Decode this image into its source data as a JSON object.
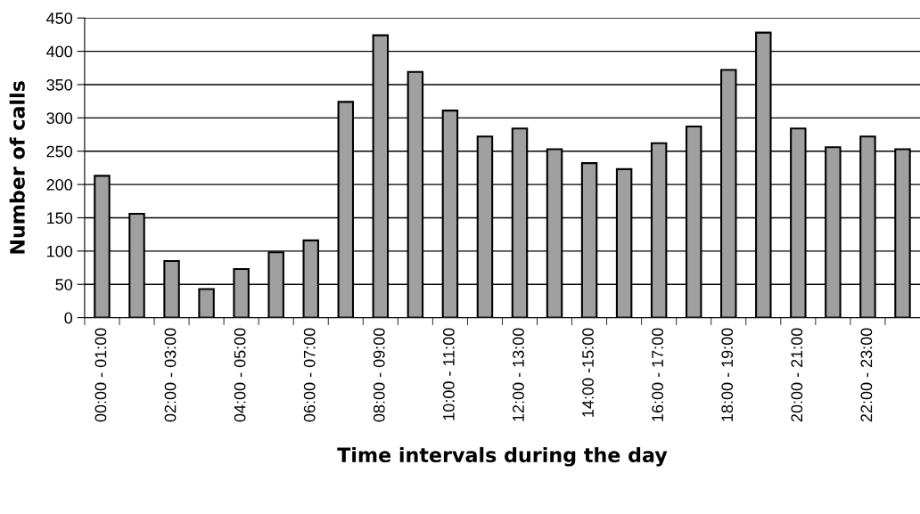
{
  "chart_data": {
    "type": "bar",
    "xlabel": "Time intervals during the day",
    "ylabel": "Number of calls",
    "categories": [
      "00:00 - 01:00",
      null,
      "02:00 - 03:00",
      null,
      "04:00 - 05:00",
      null,
      "06:00 - 07:00",
      null,
      "08:00 - 09:00",
      null,
      "10:00 - 11:00",
      null,
      "12:00 - 13:00",
      null,
      "14:00 -15:00",
      null,
      "16:00 - 17:00",
      null,
      "18:00 - 19:00",
      null,
      "20:00 - 21:00",
      null,
      "22:00 - 23:00",
      null
    ],
    "values": [
      213,
      156,
      85,
      43,
      73,
      98,
      116,
      324,
      424,
      369,
      311,
      272,
      284,
      253,
      232,
      223,
      262,
      287,
      372,
      428,
      284,
      256,
      272,
      253
    ],
    "color": "#a0a0a0",
    "ylim": [
      0,
      450
    ],
    "yticks": [
      0,
      50,
      100,
      150,
      200,
      250,
      300,
      350,
      400,
      450
    ],
    "grid": "y",
    "legend": false
  }
}
